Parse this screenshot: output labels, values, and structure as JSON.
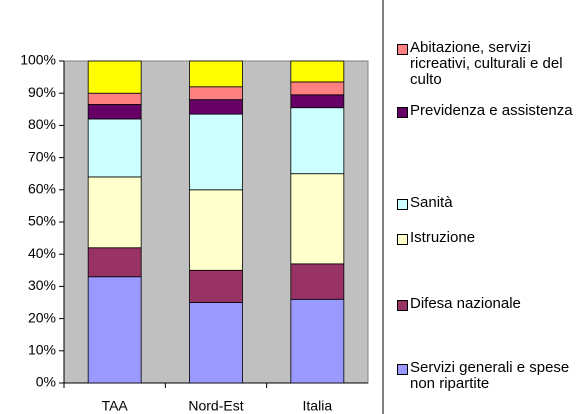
{
  "chart_data": {
    "type": "stacked_bar_percent",
    "categories": [
      "TAA",
      "Nord-Est",
      "Italia"
    ],
    "series": [
      {
        "name": "Servizi generali e spese non ripartite",
        "color": "#9999ff",
        "values": [
          33,
          25,
          26
        ]
      },
      {
        "name": "Difesa nazionale",
        "color": "#993366",
        "values": [
          9,
          10,
          11
        ]
      },
      {
        "name": "Istruzione",
        "color": "#ffffcc",
        "values": [
          22,
          25,
          28
        ]
      },
      {
        "name": "Sanità",
        "color": "#ccffff",
        "values": [
          18,
          23.5,
          20.5
        ]
      },
      {
        "name": "Previdenza e assistenza",
        "color": "#660066",
        "values": [
          4.5,
          4.5,
          4
        ]
      },
      {
        "name": "Abitazione, servizi ricreativi, culturali e del culto",
        "color": "#ff8080",
        "values": [
          3.5,
          4,
          4
        ]
      },
      {
        "name": null,
        "color": "#ffff00",
        "values": [
          10,
          8,
          6.5
        ]
      }
    ],
    "ylim": [
      0,
      100
    ],
    "yticks": [
      {
        "value": 0,
        "label": "0%"
      },
      {
        "value": 10,
        "label": "10%"
      },
      {
        "value": 20,
        "label": "20%"
      },
      {
        "value": 30,
        "label": "30%"
      },
      {
        "value": 40,
        "label": "40%"
      },
      {
        "value": 50,
        "label": "50%"
      },
      {
        "value": 60,
        "label": "60%"
      },
      {
        "value": 70,
        "label": "70%"
      },
      {
        "value": 80,
        "label": "80%"
      },
      {
        "value": 90,
        "label": "90%"
      },
      {
        "value": 100,
        "label": "100%"
      }
    ],
    "plot_background": "#c0c0c0"
  }
}
